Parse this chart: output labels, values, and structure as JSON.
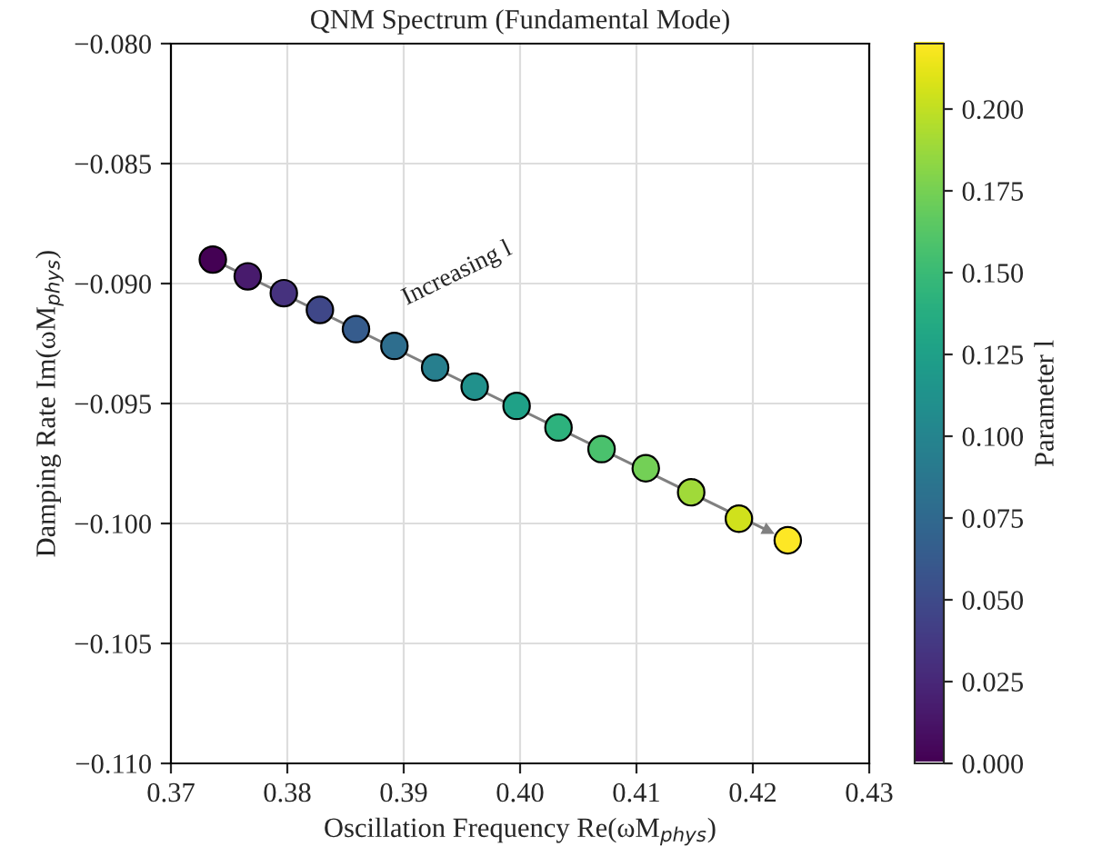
{
  "chart_data": {
    "type": "scatter",
    "title": "QNM Spectrum (Fundamental Mode)",
    "xlabel": "Oscillation Frequency Re(ωM$_{phys}$)",
    "ylabel": "Damping Rate Im(ωM$_{phys}$)",
    "clabel": "Parameter l",
    "x": [
      0.3736,
      0.3766,
      0.3797,
      0.3828,
      0.3859,
      0.3892,
      0.3927,
      0.3961,
      0.3997,
      0.4033,
      0.407,
      0.4108,
      0.4147,
      0.4188,
      0.423
    ],
    "values": [
      -0.089,
      -0.0897,
      -0.0904,
      -0.0911,
      -0.0919,
      -0.0926,
      -0.0935,
      -0.0943,
      -0.0951,
      -0.096,
      -0.0969,
      -0.0977,
      -0.0987,
      -0.0998,
      -0.1007
    ],
    "cvalues": [
      0.0,
      0.0157,
      0.0314,
      0.0471,
      0.0629,
      0.0786,
      0.0943,
      0.11,
      0.1257,
      0.1414,
      0.1571,
      0.1729,
      0.1886,
      0.2043,
      0.22
    ],
    "clim": [
      0,
      0.22
    ],
    "cticks": [
      {
        "value": 0,
        "label": "0.000"
      },
      0.025,
      {
        "value": 0.05,
        "label": "0.050"
      },
      0.075,
      {
        "value": 0.1,
        "label": "0.100"
      },
      0.125,
      {
        "value": 0.15,
        "label": "0.150"
      },
      0.175,
      {
        "value": 0.2,
        "label": "0.200"
      }
    ],
    "xlim": [
      0.37,
      0.43
    ],
    "xticks": [
      {
        "value": 0.37,
        "label": "0.37"
      },
      0.38,
      0.39,
      {
        "value": 0.4,
        "label": "0.40"
      },
      0.41,
      0.42,
      0.43
    ],
    "ylim": [
      -0.11,
      -0.08
    ],
    "yticks": [
      {
        "value": -0.11,
        "label": "−0.110"
      },
      {
        "value": -0.105,
        "label": "−0.105"
      },
      {
        "value": -0.1,
        "label": "−0.100"
      },
      {
        "value": -0.095,
        "label": "−0.095"
      },
      {
        "value": -0.09,
        "label": "−0.090"
      },
      {
        "value": -0.085,
        "label": "−0.085"
      },
      {
        "value": -0.08,
        "label": "−0.080"
      }
    ],
    "annotations": [
      "Increasing l"
    ],
    "grid": true,
    "marker": "circle"
  }
}
